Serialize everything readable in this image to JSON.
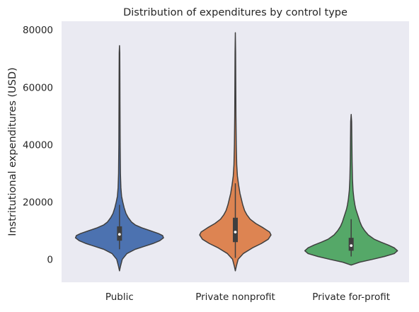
{
  "chart_data": {
    "type": "violin",
    "title": "Distribution of expenditures by control type",
    "xlabel": "",
    "ylabel": "Instritutional expenditures (USD)",
    "ylim": [
      -8000,
      83000
    ],
    "yticks": [
      0,
      20000,
      40000,
      60000,
      80000
    ],
    "ytick_labels": [
      "0",
      "20000",
      "40000",
      "60000",
      "80000"
    ],
    "grid": false,
    "background_color": "#eaeaf2",
    "categories": [
      "Public",
      "Private nonprofit",
      "Private for-profit"
    ],
    "series": [
      {
        "color": "#4c72b0",
        "extent": [
          -4000,
          74500
        ],
        "box": {
          "q1": 6500,
          "median": 8700,
          "q3": 11500,
          "whisker_low": 3500,
          "whisker_high": 19000
        },
        "profile": [
          [
            -4000,
            0.0
          ],
          [
            -2500,
            0.02
          ],
          [
            0,
            0.06
          ],
          [
            2000,
            0.16
          ],
          [
            3500,
            0.34
          ],
          [
            4500,
            0.53
          ],
          [
            5500,
            0.72
          ],
          [
            6500,
            0.87
          ],
          [
            7500,
            0.95
          ],
          [
            8300,
            0.93
          ],
          [
            9000,
            0.84
          ],
          [
            10000,
            0.66
          ],
          [
            11000,
            0.48
          ],
          [
            12000,
            0.34
          ],
          [
            13000,
            0.26
          ],
          [
            14500,
            0.19
          ],
          [
            16000,
            0.14
          ],
          [
            18000,
            0.1
          ],
          [
            20000,
            0.07
          ],
          [
            22000,
            0.045
          ],
          [
            25000,
            0.03
          ],
          [
            30000,
            0.02
          ],
          [
            40000,
            0.014
          ],
          [
            55000,
            0.01
          ],
          [
            65000,
            0.008
          ],
          [
            72000,
            0.006
          ],
          [
            74500,
            0.0
          ]
        ]
      },
      {
        "color": "#dd8452",
        "extent": [
          -4000,
          79000
        ],
        "box": {
          "q1": 6000,
          "median": 9500,
          "q3": 14500,
          "whisker_low": 500,
          "whisker_high": 26500
        },
        "profile": [
          [
            -4000,
            0.0
          ],
          [
            -2500,
            0.02
          ],
          [
            0,
            0.06
          ],
          [
            2000,
            0.17
          ],
          [
            4000,
            0.37
          ],
          [
            5500,
            0.56
          ],
          [
            7000,
            0.71
          ],
          [
            8500,
            0.77
          ],
          [
            9500,
            0.74
          ],
          [
            11000,
            0.6
          ],
          [
            12500,
            0.44
          ],
          [
            14000,
            0.32
          ],
          [
            15500,
            0.25
          ],
          [
            17000,
            0.2
          ],
          [
            19000,
            0.16
          ],
          [
            21000,
            0.13
          ],
          [
            23000,
            0.1
          ],
          [
            26000,
            0.07
          ],
          [
            29000,
            0.045
          ],
          [
            33000,
            0.03
          ],
          [
            40000,
            0.02
          ],
          [
            50000,
            0.013
          ],
          [
            62000,
            0.009
          ],
          [
            72000,
            0.006
          ],
          [
            79000,
            0.0
          ]
        ]
      },
      {
        "color": "#55a868",
        "extent": [
          -2000,
          50500
        ],
        "box": {
          "q1": 3000,
          "median": 4800,
          "q3": 7500,
          "whisker_low": 1000,
          "whisker_high": 14000
        },
        "profile": [
          [
            -2000,
            0.0
          ],
          [
            -1000,
            0.18
          ],
          [
            0,
            0.46
          ],
          [
            1000,
            0.72
          ],
          [
            2000,
            0.93
          ],
          [
            3000,
            1.0
          ],
          [
            4000,
            0.93
          ],
          [
            5000,
            0.8
          ],
          [
            6000,
            0.64
          ],
          [
            7000,
            0.5
          ],
          [
            8500,
            0.37
          ],
          [
            10000,
            0.29
          ],
          [
            11500,
            0.23
          ],
          [
            13000,
            0.19
          ],
          [
            14500,
            0.16
          ],
          [
            16000,
            0.13
          ],
          [
            17500,
            0.1
          ],
          [
            19000,
            0.08
          ],
          [
            21000,
            0.06
          ],
          [
            24000,
            0.04
          ],
          [
            28000,
            0.028
          ],
          [
            34000,
            0.02
          ],
          [
            42000,
            0.014
          ],
          [
            48000,
            0.01
          ],
          [
            50500,
            0.0
          ]
        ]
      }
    ]
  }
}
